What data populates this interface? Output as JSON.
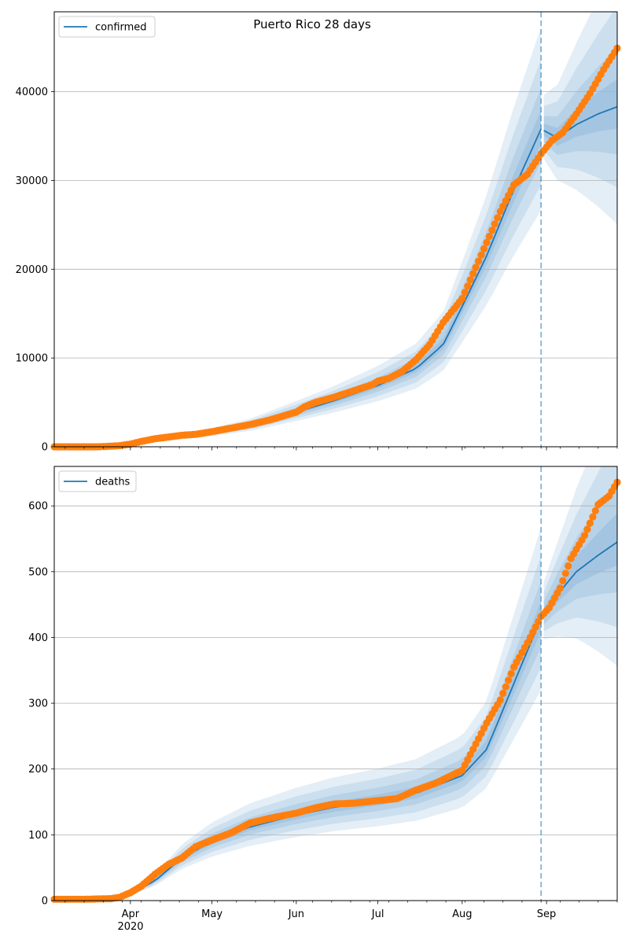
{
  "title": "Puerto Rico 28 days",
  "chart_data": [
    {
      "type": "line",
      "panel": "top",
      "legend": [
        "confirmed"
      ],
      "legend_position": "upper-left",
      "grid": "horizontal",
      "ylim": [
        0,
        49000
      ],
      "yticks": [
        0,
        10000,
        20000,
        30000,
        40000
      ],
      "xticks": [
        {
          "date": "2020-04-01",
          "label": "Apr"
        },
        {
          "date": "2020-05-01",
          "label": "May"
        },
        {
          "date": "2020-06-01",
          "label": "Jun"
        },
        {
          "date": "2020-07-01",
          "label": "Jul"
        },
        {
          "date": "2020-08-01",
          "label": "Aug"
        },
        {
          "date": "2020-09-01",
          "label": "Sep"
        }
      ],
      "year_label": "2020",
      "xlim": [
        "2020-03-04",
        "2020-09-27"
      ],
      "forecast_start": "2020-08-30",
      "colors": {
        "fit": "#1f77b4",
        "observed": "#ff7f0e",
        "band": "#1f77b4"
      },
      "observed": {
        "x": [
          "2020-03-04",
          "2020-03-10",
          "2020-03-15",
          "2020-03-20",
          "2020-03-24",
          "2020-03-28",
          "2020-04-01",
          "2020-04-05",
          "2020-04-10",
          "2020-04-15",
          "2020-04-20",
          "2020-04-25",
          "2020-05-01",
          "2020-05-08",
          "2020-05-15",
          "2020-05-22",
          "2020-06-01",
          "2020-06-04",
          "2020-06-08",
          "2020-06-15",
          "2020-06-22",
          "2020-06-29",
          "2020-07-01",
          "2020-07-05",
          "2020-07-10",
          "2020-07-15",
          "2020-07-20",
          "2020-07-25",
          "2020-08-01",
          "2020-08-05",
          "2020-08-10",
          "2020-08-15",
          "2020-08-20",
          "2020-08-25",
          "2020-08-30",
          "2020-09-03",
          "2020-09-07",
          "2020-09-12",
          "2020-09-17",
          "2020-09-22",
          "2020-09-27"
        ],
        "y": [
          0,
          0,
          0,
          0,
          50,
          120,
          300,
          600,
          900,
          1100,
          1300,
          1400,
          1700,
          2100,
          2500,
          3000,
          3900,
          4500,
          5000,
          5600,
          6300,
          7000,
          7400,
          7700,
          8500,
          9800,
          11500,
          14000,
          16700,
          19500,
          23000,
          26500,
          29500,
          30700,
          33000,
          34500,
          35400,
          37500,
          39800,
          42500,
          44900
        ]
      },
      "fit": {
        "x": [
          "2020-03-04",
          "2020-03-20",
          "2020-04-01",
          "2020-04-15",
          "2020-05-01",
          "2020-05-15",
          "2020-06-01",
          "2020-06-15",
          "2020-07-01",
          "2020-07-15",
          "2020-07-25",
          "2020-08-01",
          "2020-08-10",
          "2020-08-20",
          "2020-08-30",
          "2020-09-05",
          "2020-09-12",
          "2020-09-20",
          "2020-09-27"
        ],
        "y": [
          0,
          20,
          250,
          900,
          1600,
          2400,
          3900,
          5200,
          6900,
          8800,
          11500,
          15800,
          21500,
          29000,
          35800,
          34800,
          36300,
          37500,
          38300
        ]
      }
    },
    {
      "type": "line",
      "panel": "bottom",
      "legend": [
        "deaths"
      ],
      "legend_position": "upper-left",
      "grid": "horizontal",
      "ylim": [
        0,
        660
      ],
      "yticks": [
        0,
        100,
        200,
        300,
        400,
        500,
        600
      ],
      "xticks": [
        {
          "date": "2020-04-01",
          "label": "Apr"
        },
        {
          "date": "2020-05-01",
          "label": "May"
        },
        {
          "date": "2020-06-01",
          "label": "Jun"
        },
        {
          "date": "2020-07-01",
          "label": "Jul"
        },
        {
          "date": "2020-08-01",
          "label": "Aug"
        },
        {
          "date": "2020-09-01",
          "label": "Sep"
        }
      ],
      "year_label": "2020",
      "xlim": [
        "2020-03-04",
        "2020-09-27"
      ],
      "forecast_start": "2020-08-30",
      "colors": {
        "fit": "#1f77b4",
        "observed": "#ff7f0e",
        "band": "#1f77b4"
      },
      "observed": {
        "x": [
          "2020-03-04",
          "2020-03-15",
          "2020-03-25",
          "2020-03-28",
          "2020-04-01",
          "2020-04-05",
          "2020-04-10",
          "2020-04-15",
          "2020-04-20",
          "2020-04-25",
          "2020-05-01",
          "2020-05-08",
          "2020-05-15",
          "2020-05-22",
          "2020-06-01",
          "2020-06-08",
          "2020-06-15",
          "2020-06-22",
          "2020-07-01",
          "2020-07-08",
          "2020-07-15",
          "2020-07-22",
          "2020-08-01",
          "2020-08-05",
          "2020-08-10",
          "2020-08-15",
          "2020-08-20",
          "2020-08-25",
          "2020-08-30",
          "2020-09-02",
          "2020-09-06",
          "2020-09-10",
          "2020-09-15",
          "2020-09-20",
          "2020-09-24",
          "2020-09-27"
        ],
        "y": [
          2,
          2,
          3,
          5,
          12,
          22,
          40,
          55,
          65,
          82,
          92,
          103,
          118,
          125,
          133,
          141,
          147,
          148,
          152,
          155,
          168,
          178,
          198,
          230,
          270,
          305,
          355,
          392,
          432,
          445,
          475,
          520,
          555,
          602,
          615,
          636
        ]
      },
      "fit": {
        "x": [
          "2020-03-04",
          "2020-03-25",
          "2020-04-01",
          "2020-04-10",
          "2020-04-20",
          "2020-05-01",
          "2020-05-15",
          "2020-06-01",
          "2020-06-15",
          "2020-07-01",
          "2020-07-15",
          "2020-08-01",
          "2020-08-10",
          "2020-08-20",
          "2020-08-30",
          "2020-09-05",
          "2020-09-12",
          "2020-09-20",
          "2020-09-27"
        ],
        "y": [
          0,
          2,
          10,
          30,
          65,
          90,
          112,
          130,
          142,
          152,
          163,
          190,
          230,
          330,
          430,
          465,
          500,
          525,
          545
        ]
      }
    }
  ]
}
